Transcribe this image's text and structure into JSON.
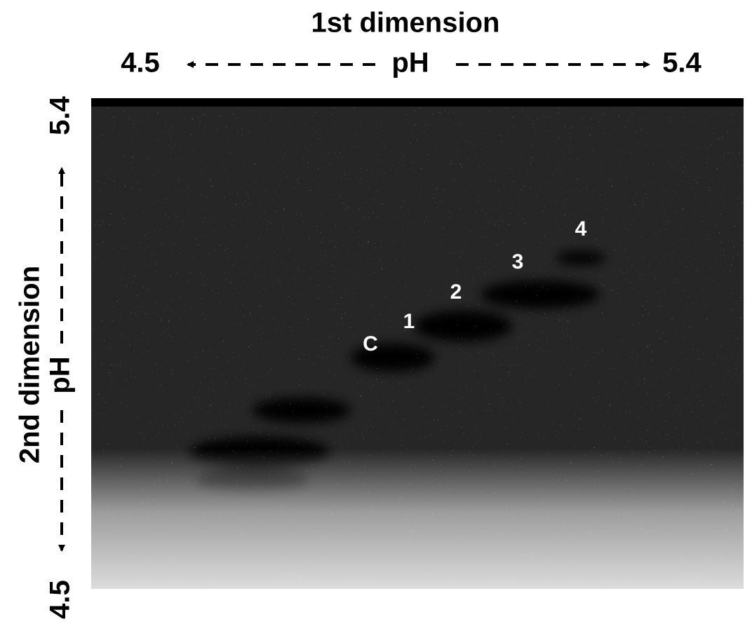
{
  "header": {
    "title": "1st dimension",
    "axis_label": "pH",
    "left": "4.5",
    "right": "5.4"
  },
  "side": {
    "title": "2nd dimension",
    "axis_label": "pH",
    "top": "5.4",
    "bottom": "4.5"
  },
  "spots": [
    {
      "label": "C"
    },
    {
      "label": "1"
    },
    {
      "label": "2"
    },
    {
      "label": "3"
    },
    {
      "label": "4"
    }
  ]
}
